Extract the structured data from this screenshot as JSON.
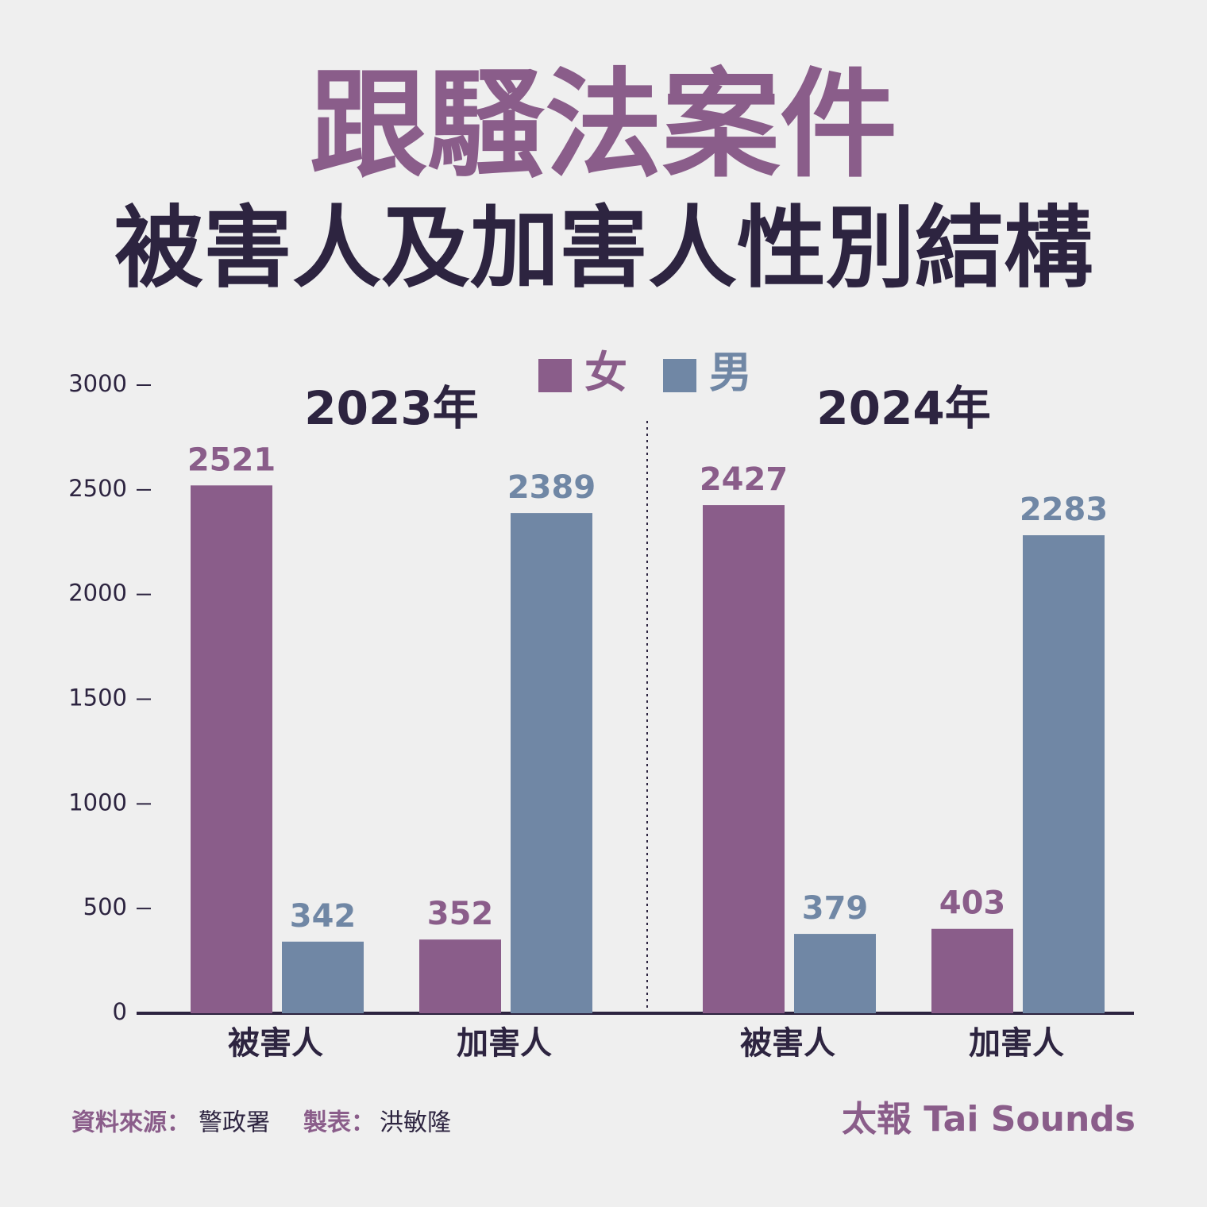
{
  "chart_data": {
    "type": "bar",
    "title": "跟騷法案件",
    "subtitle": "被害人及加害人性別結構",
    "groups": [
      "2023年",
      "2024年"
    ],
    "categories": [
      "被害人",
      "加害人",
      "被害人",
      "加害人"
    ],
    "series": [
      {
        "name": "女",
        "color": "#8a5d8a",
        "values": [
          2521,
          352,
          2427,
          403
        ]
      },
      {
        "name": "男",
        "color": "#7087a5",
        "values": [
          342,
          2389,
          379,
          2283
        ]
      }
    ],
    "ylim": [
      0,
      3000
    ],
    "yticks": [
      0,
      500,
      1000,
      1500,
      2000,
      2500,
      3000
    ],
    "source_label": "資料來源：",
    "source": "警政署",
    "author_label": "製表：",
    "author": "洪敏隆",
    "brand": "太報 Tai Sounds"
  }
}
